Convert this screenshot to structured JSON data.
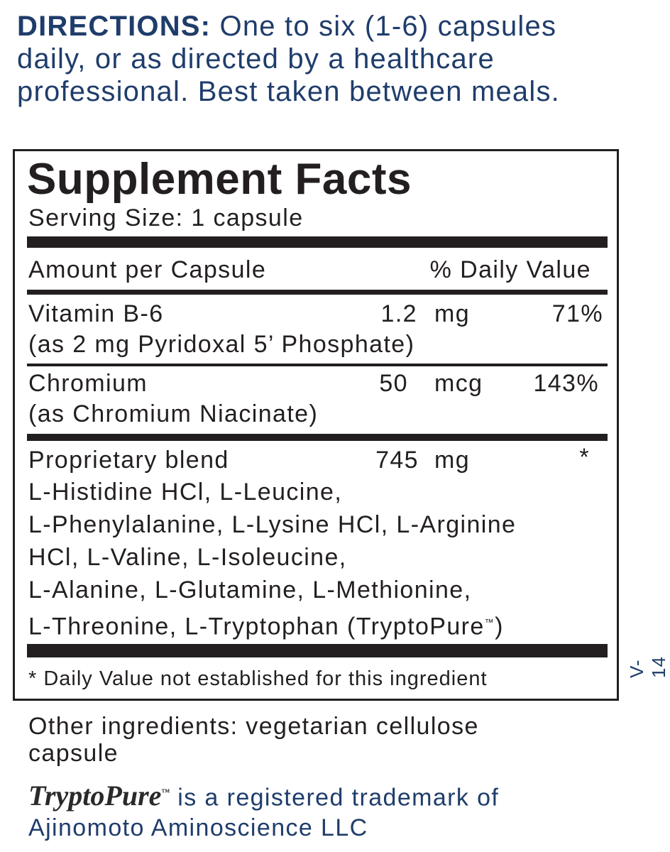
{
  "directions": {
    "label": "DIRECTIONS:",
    "text": " One to six (1-6) capsules daily, or as directed by a healthcare professional. Best taken between meals."
  },
  "facts": {
    "title": "Supplement Facts",
    "serving_size": "Serving Size: 1 capsule",
    "header_amount": "Amount per Capsule",
    "header_dv": "% Daily Value",
    "rows": [
      {
        "name": "Vitamin B-6",
        "detail": "(as 2 mg Pyridoxal 5’ Phosphate)",
        "amount": "1.2",
        "unit": "mg",
        "dv": "71%"
      },
      {
        "name": "Chromium",
        "detail": "(as Chromium Niacinate)",
        "amount": "50",
        "unit": "mcg",
        "dv": "143%"
      }
    ],
    "blend": {
      "name": "Proprietary blend",
      "amount": "745",
      "unit": "mg",
      "dv": "*",
      "lines": [
        "L-Histidine HCl, L-Leucine,",
        "L-Phenylalanine, L-Lysine HCl, L-Arginine",
        "HCl, L-Valine, L-Isoleucine,",
        "L-Alanine, L-Glutamine, L-Methionine,",
        "L-Threonine, L-Tryptophan (TryptoPure",
        "™",
        ")"
      ]
    },
    "footnote": "* Daily Value not established for this ingredient"
  },
  "version_code": "V-14",
  "other_ingredients": [
    "Other ingredients: vegetarian cellulose",
    "capsule"
  ],
  "trademark": {
    "logo": "TryptoPure",
    "logo_tm": "™",
    "line1": " is a registered trademark of",
    "line2": "Ajinomoto Aminoscience LLC"
  }
}
